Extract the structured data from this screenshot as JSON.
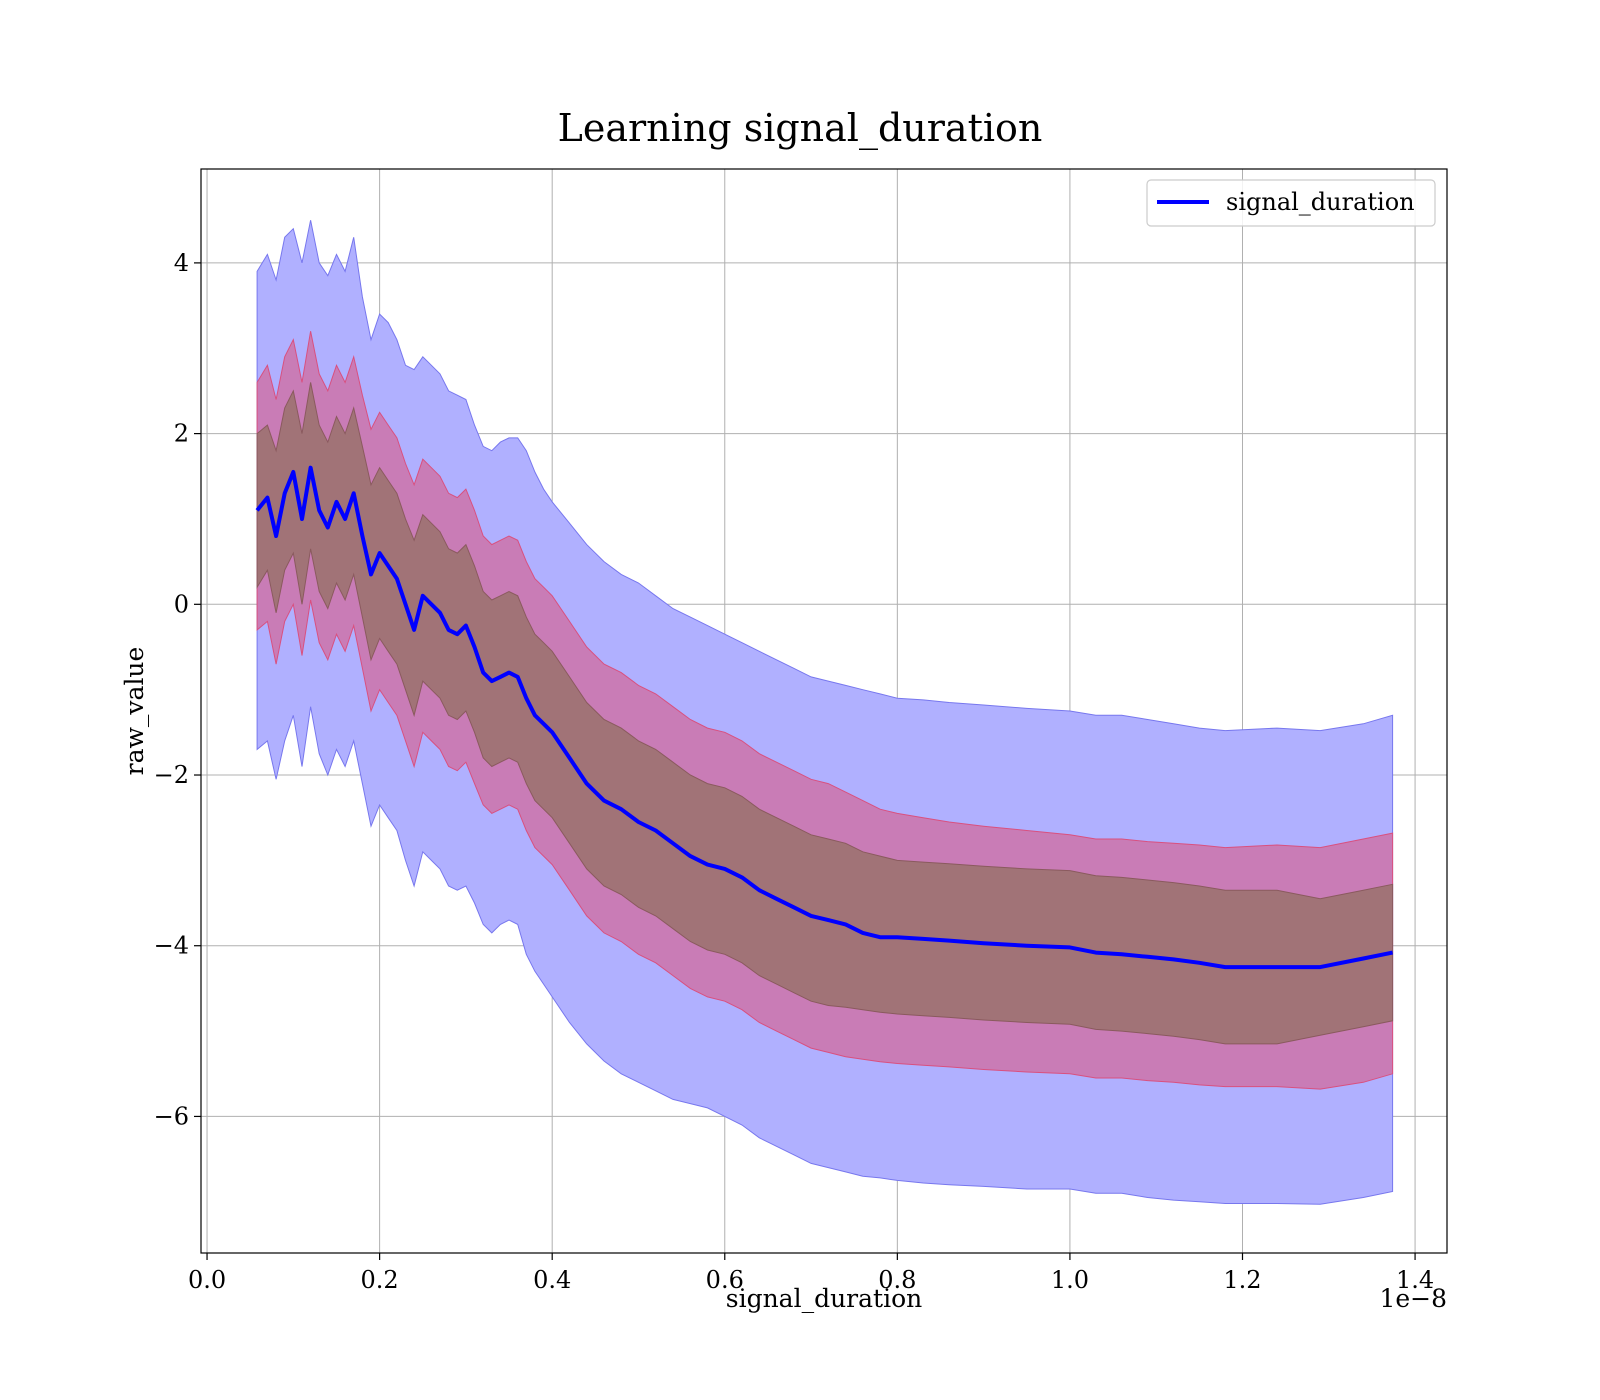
{
  "chart_data": {
    "type": "line",
    "title": "Learning signal_duration",
    "xlabel": "signal_duration",
    "ylabel": "raw_value",
    "x_offset_text": "1e−8",
    "xlim": [
      -0.007,
      1.437
    ],
    "ylim": [
      -7.6,
      5.1
    ],
    "grid": true,
    "legend_position": "upper right",
    "x_ticks": [
      0.0,
      0.2,
      0.4,
      0.6,
      0.8,
      1.0,
      1.2,
      1.4
    ],
    "x_tick_labels": [
      "0.0",
      "0.2",
      "0.4",
      "0.6",
      "0.8",
      "1.0",
      "1.2",
      "1.4"
    ],
    "y_ticks": [
      4,
      2,
      0,
      -2,
      -4,
      -6
    ],
    "y_tick_labels": [
      "4",
      "2",
      "0",
      "−2",
      "−4",
      "−6"
    ],
    "series": [
      {
        "name": "signal_duration",
        "color": "#0000ff",
        "x": [
          0.058,
          0.07,
          0.08,
          0.09,
          0.1,
          0.11,
          0.12,
          0.13,
          0.14,
          0.15,
          0.16,
          0.17,
          0.18,
          0.19,
          0.2,
          0.21,
          0.22,
          0.23,
          0.24,
          0.25,
          0.26,
          0.27,
          0.28,
          0.29,
          0.3,
          0.31,
          0.32,
          0.33,
          0.34,
          0.35,
          0.36,
          0.37,
          0.38,
          0.39,
          0.4,
          0.42,
          0.44,
          0.46,
          0.48,
          0.5,
          0.52,
          0.54,
          0.56,
          0.58,
          0.6,
          0.62,
          0.64,
          0.66,
          0.68,
          0.7,
          0.72,
          0.74,
          0.76,
          0.78,
          0.8,
          0.83,
          0.86,
          0.9,
          0.95,
          1.0,
          1.03,
          1.06,
          1.09,
          1.12,
          1.15,
          1.18,
          1.24,
          1.29,
          1.34,
          1.374
        ],
        "y": [
          1.1,
          1.25,
          0.8,
          1.3,
          1.55,
          1.0,
          1.6,
          1.1,
          0.9,
          1.2,
          1.0,
          1.3,
          0.8,
          0.35,
          0.6,
          0.45,
          0.3,
          0.0,
          -0.3,
          0.1,
          0.0,
          -0.1,
          -0.3,
          -0.35,
          -0.25,
          -0.5,
          -0.8,
          -0.9,
          -0.85,
          -0.8,
          -0.85,
          -1.1,
          -1.3,
          -1.4,
          -1.5,
          -1.8,
          -2.1,
          -2.3,
          -2.4,
          -2.55,
          -2.65,
          -2.8,
          -2.95,
          -3.05,
          -3.1,
          -3.2,
          -3.35,
          -3.45,
          -3.55,
          -3.65,
          -3.7,
          -3.75,
          -3.85,
          -3.9,
          -3.9,
          -3.92,
          -3.94,
          -3.97,
          -4.0,
          -4.02,
          -4.08,
          -4.1,
          -4.13,
          -4.16,
          -4.2,
          -4.25,
          -4.25,
          -4.25,
          -4.15,
          -4.08
        ],
        "inner_upper": [
          2.0,
          2.1,
          1.8,
          2.3,
          2.5,
          2.0,
          2.6,
          2.1,
          1.9,
          2.2,
          2.0,
          2.3,
          1.85,
          1.4,
          1.6,
          1.45,
          1.3,
          1.0,
          0.75,
          1.05,
          0.95,
          0.85,
          0.65,
          0.6,
          0.7,
          0.45,
          0.15,
          0.05,
          0.1,
          0.15,
          0.1,
          -0.15,
          -0.35,
          -0.45,
          -0.55,
          -0.85,
          -1.15,
          -1.35,
          -1.45,
          -1.6,
          -1.7,
          -1.85,
          -2.0,
          -2.1,
          -2.15,
          -2.25,
          -2.4,
          -2.5,
          -2.6,
          -2.7,
          -2.75,
          -2.8,
          -2.9,
          -2.95,
          -3.0,
          -3.02,
          -3.04,
          -3.07,
          -3.1,
          -3.12,
          -3.18,
          -3.2,
          -3.23,
          -3.26,
          -3.3,
          -3.35,
          -3.35,
          -3.45,
          -3.35,
          -3.28
        ],
        "inner_lower": [
          0.2,
          0.4,
          -0.1,
          0.4,
          0.6,
          0.0,
          0.65,
          0.15,
          -0.05,
          0.25,
          0.05,
          0.35,
          -0.15,
          -0.65,
          -0.4,
          -0.55,
          -0.7,
          -1.0,
          -1.3,
          -0.9,
          -1.0,
          -1.1,
          -1.3,
          -1.35,
          -1.25,
          -1.5,
          -1.8,
          -1.9,
          -1.85,
          -1.8,
          -1.85,
          -2.1,
          -2.3,
          -2.4,
          -2.5,
          -2.8,
          -3.1,
          -3.3,
          -3.4,
          -3.55,
          -3.65,
          -3.8,
          -3.95,
          -4.05,
          -4.1,
          -4.2,
          -4.35,
          -4.45,
          -4.55,
          -4.65,
          -4.7,
          -4.72,
          -4.75,
          -4.78,
          -4.8,
          -4.82,
          -4.84,
          -4.87,
          -4.9,
          -4.92,
          -4.98,
          -5.0,
          -5.03,
          -5.06,
          -5.1,
          -5.15,
          -5.15,
          -5.05,
          -4.95,
          -4.88
        ],
        "mid_upper": [
          2.6,
          2.8,
          2.4,
          2.9,
          3.1,
          2.6,
          3.2,
          2.7,
          2.5,
          2.8,
          2.6,
          2.9,
          2.45,
          2.05,
          2.25,
          2.1,
          1.95,
          1.65,
          1.4,
          1.7,
          1.6,
          1.5,
          1.3,
          1.25,
          1.35,
          1.1,
          0.8,
          0.7,
          0.75,
          0.8,
          0.75,
          0.5,
          0.3,
          0.2,
          0.1,
          -0.2,
          -0.5,
          -0.7,
          -0.8,
          -0.95,
          -1.05,
          -1.2,
          -1.35,
          -1.45,
          -1.5,
          -1.6,
          -1.75,
          -1.85,
          -1.95,
          -2.05,
          -2.1,
          -2.2,
          -2.3,
          -2.4,
          -2.45,
          -2.5,
          -2.55,
          -2.6,
          -2.65,
          -2.7,
          -2.75,
          -2.75,
          -2.78,
          -2.8,
          -2.82,
          -2.85,
          -2.82,
          -2.85,
          -2.75,
          -2.68
        ],
        "mid_lower": [
          -0.3,
          -0.2,
          -0.7,
          -0.2,
          0.0,
          -0.6,
          0.05,
          -0.45,
          -0.65,
          -0.35,
          -0.55,
          -0.25,
          -0.75,
          -1.25,
          -1.0,
          -1.15,
          -1.3,
          -1.6,
          -1.9,
          -1.5,
          -1.6,
          -1.7,
          -1.9,
          -1.95,
          -1.85,
          -2.1,
          -2.35,
          -2.45,
          -2.4,
          -2.35,
          -2.4,
          -2.65,
          -2.85,
          -2.95,
          -3.05,
          -3.35,
          -3.65,
          -3.85,
          -3.95,
          -4.1,
          -4.2,
          -4.35,
          -4.5,
          -4.6,
          -4.65,
          -4.75,
          -4.9,
          -5.0,
          -5.1,
          -5.2,
          -5.25,
          -5.3,
          -5.33,
          -5.36,
          -5.38,
          -5.4,
          -5.42,
          -5.45,
          -5.48,
          -5.5,
          -5.55,
          -5.55,
          -5.58,
          -5.6,
          -5.63,
          -5.65,
          -5.65,
          -5.68,
          -5.6,
          -5.5
        ],
        "outer_upper": [
          3.9,
          4.1,
          3.8,
          4.3,
          4.4,
          4.0,
          4.5,
          4.0,
          3.85,
          4.1,
          3.9,
          4.3,
          3.6,
          3.1,
          3.4,
          3.3,
          3.1,
          2.8,
          2.75,
          2.9,
          2.8,
          2.7,
          2.5,
          2.45,
          2.4,
          2.1,
          1.85,
          1.8,
          1.9,
          1.95,
          1.95,
          1.8,
          1.55,
          1.35,
          1.2,
          0.95,
          0.7,
          0.5,
          0.35,
          0.25,
          0.1,
          -0.05,
          -0.15,
          -0.25,
          -0.35,
          -0.45,
          -0.55,
          -0.65,
          -0.75,
          -0.85,
          -0.9,
          -0.95,
          -1.0,
          -1.05,
          -1.1,
          -1.12,
          -1.15,
          -1.18,
          -1.22,
          -1.25,
          -1.3,
          -1.3,
          -1.35,
          -1.4,
          -1.45,
          -1.48,
          -1.45,
          -1.48,
          -1.4,
          -1.3
        ],
        "outer_lower": [
          -1.7,
          -1.6,
          -2.05,
          -1.6,
          -1.3,
          -1.9,
          -1.2,
          -1.75,
          -2.0,
          -1.7,
          -1.9,
          -1.6,
          -2.1,
          -2.6,
          -2.35,
          -2.5,
          -2.65,
          -3.0,
          -3.3,
          -2.9,
          -3.0,
          -3.1,
          -3.3,
          -3.35,
          -3.3,
          -3.5,
          -3.75,
          -3.85,
          -3.75,
          -3.7,
          -3.75,
          -4.1,
          -4.3,
          -4.45,
          -4.6,
          -4.9,
          -5.15,
          -5.35,
          -5.5,
          -5.6,
          -5.7,
          -5.8,
          -5.85,
          -5.9,
          -6.0,
          -6.1,
          -6.25,
          -6.35,
          -6.45,
          -6.55,
          -6.6,
          -6.65,
          -6.7,
          -6.72,
          -6.75,
          -6.78,
          -6.8,
          -6.82,
          -6.85,
          -6.85,
          -6.9,
          -6.9,
          -6.95,
          -6.98,
          -7.0,
          -7.02,
          -7.02,
          -7.03,
          -6.95,
          -6.88
        ]
      }
    ],
    "band_colors": {
      "outer": "#b0b0ff",
      "middle": "#c97cb6",
      "inner": "#a17377",
      "outer_edge": "#7777ee",
      "middle_edge": "#d9507f",
      "inner_edge": "#8a5a5e"
    }
  }
}
